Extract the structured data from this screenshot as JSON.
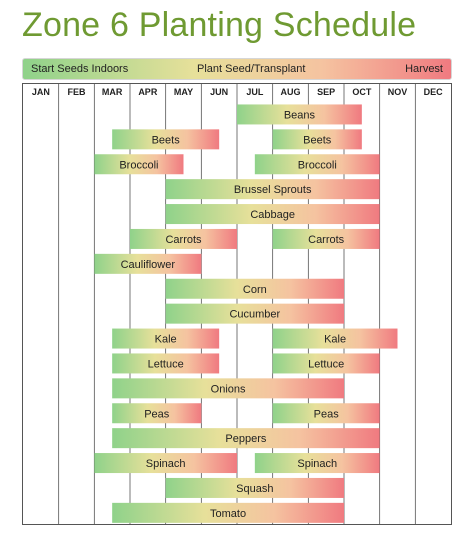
{
  "title": "Zone 6 Planting Schedule",
  "legend": {
    "start": "Start Seeds Indoors",
    "middle": "Plant Seed/Transplant",
    "end": "Harvest"
  },
  "colors": {
    "title": "#6f9a32",
    "gradient_start": "#8fd28a",
    "gradient_mid": "#e7e09a",
    "gradient_late": "#f5c3a0",
    "gradient_end": "#f07a80",
    "grid": "#555555"
  },
  "chart_data": {
    "type": "gantt",
    "title": "Zone 6 Planting Schedule",
    "months": [
      "JAN",
      "FEB",
      "MAR",
      "APR",
      "MAY",
      "JUN",
      "JUL",
      "AUG",
      "SEP",
      "OCT",
      "NOV",
      "DEC"
    ],
    "unit": "month index (0 = start of JAN, 12 = end of DEC)",
    "crops": [
      {
        "name": "Beans",
        "segments": [
          [
            6.0,
            9.5
          ]
        ]
      },
      {
        "name": "Beets",
        "segments": [
          [
            2.5,
            5.5
          ],
          [
            7.0,
            9.5
          ]
        ]
      },
      {
        "name": "Broccoli",
        "segments": [
          [
            2.0,
            4.5
          ],
          [
            6.5,
            10.0
          ]
        ]
      },
      {
        "name": "Brussel Sprouts",
        "segments": [
          [
            4.0,
            10.0
          ]
        ]
      },
      {
        "name": "Cabbage",
        "segments": [
          [
            4.0,
            10.0
          ]
        ]
      },
      {
        "name": "Carrots",
        "segments": [
          [
            3.0,
            6.0
          ],
          [
            7.0,
            10.0
          ]
        ]
      },
      {
        "name": "Cauliflower",
        "segments": [
          [
            2.0,
            5.0
          ]
        ]
      },
      {
        "name": "Corn",
        "segments": [
          [
            4.0,
            9.0
          ]
        ]
      },
      {
        "name": "Cucumber",
        "segments": [
          [
            4.0,
            9.0
          ]
        ]
      },
      {
        "name": "Kale",
        "segments": [
          [
            2.5,
            5.5
          ],
          [
            7.0,
            10.5
          ]
        ]
      },
      {
        "name": "Lettuce",
        "segments": [
          [
            2.5,
            5.5
          ],
          [
            7.0,
            10.0
          ]
        ]
      },
      {
        "name": "Onions",
        "segments": [
          [
            2.5,
            9.0
          ]
        ]
      },
      {
        "name": "Peas",
        "segments": [
          [
            2.5,
            5.0
          ],
          [
            7.0,
            10.0
          ]
        ]
      },
      {
        "name": "Peppers",
        "segments": [
          [
            2.5,
            10.0
          ]
        ]
      },
      {
        "name": "Spinach",
        "segments": [
          [
            2.0,
            6.0
          ],
          [
            6.5,
            10.0
          ]
        ]
      },
      {
        "name": "Squash",
        "segments": [
          [
            4.0,
            9.0
          ]
        ]
      },
      {
        "name": "Tomato",
        "segments": [
          [
            2.5,
            9.0
          ]
        ]
      }
    ]
  }
}
